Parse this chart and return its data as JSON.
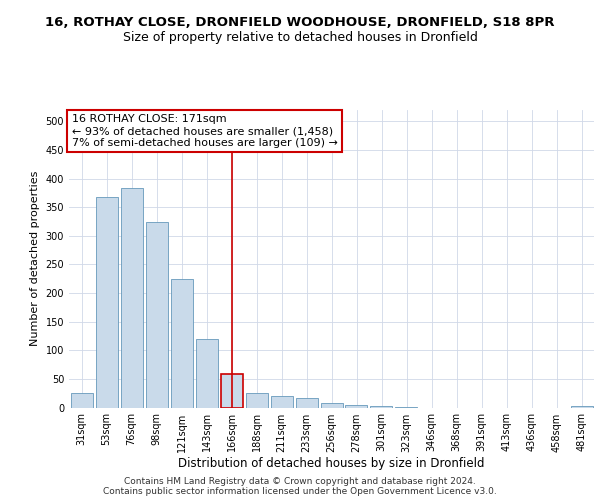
{
  "title": "16, ROTHAY CLOSE, DRONFIELD WOODHOUSE, DRONFIELD, S18 8PR",
  "subtitle": "Size of property relative to detached houses in Dronfield",
  "xlabel": "Distribution of detached houses by size in Dronfield",
  "ylabel": "Number of detached properties",
  "footer_line1": "Contains HM Land Registry data © Crown copyright and database right 2024.",
  "footer_line2": "Contains public sector information licensed under the Open Government Licence v3.0.",
  "bar_labels": [
    "31sqm",
    "53sqm",
    "76sqm",
    "98sqm",
    "121sqm",
    "143sqm",
    "166sqm",
    "188sqm",
    "211sqm",
    "233sqm",
    "256sqm",
    "278sqm",
    "301sqm",
    "323sqm",
    "346sqm",
    "368sqm",
    "391sqm",
    "413sqm",
    "436sqm",
    "458sqm",
    "481sqm"
  ],
  "bar_values": [
    26,
    368,
    383,
    325,
    225,
    120,
    58,
    26,
    20,
    16,
    7,
    5,
    2,
    1,
    0,
    0,
    0,
    0,
    0,
    0,
    3
  ],
  "bar_color": "#c9daea",
  "bar_edge_color": "#6699bb",
  "highlight_bar_index": 6,
  "highlight_bar_edge_color": "#cc0000",
  "vline_color": "#cc0000",
  "annotation_line1": "16 ROTHAY CLOSE: 171sqm",
  "annotation_line2": "← 93% of detached houses are smaller (1,458)",
  "annotation_line3": "7% of semi-detached houses are larger (109) →",
  "annotation_box_color": "white",
  "annotation_box_edge_color": "#cc0000",
  "ylim": [
    0,
    520
  ],
  "yticks": [
    0,
    50,
    100,
    150,
    200,
    250,
    300,
    350,
    400,
    450,
    500
  ],
  "background_color": "white",
  "grid_color": "#d0d8e8",
  "title_fontsize": 9.5,
  "subtitle_fontsize": 9,
  "xlabel_fontsize": 8.5,
  "ylabel_fontsize": 8,
  "tick_fontsize": 7,
  "annotation_fontsize": 8,
  "footer_fontsize": 6.5
}
